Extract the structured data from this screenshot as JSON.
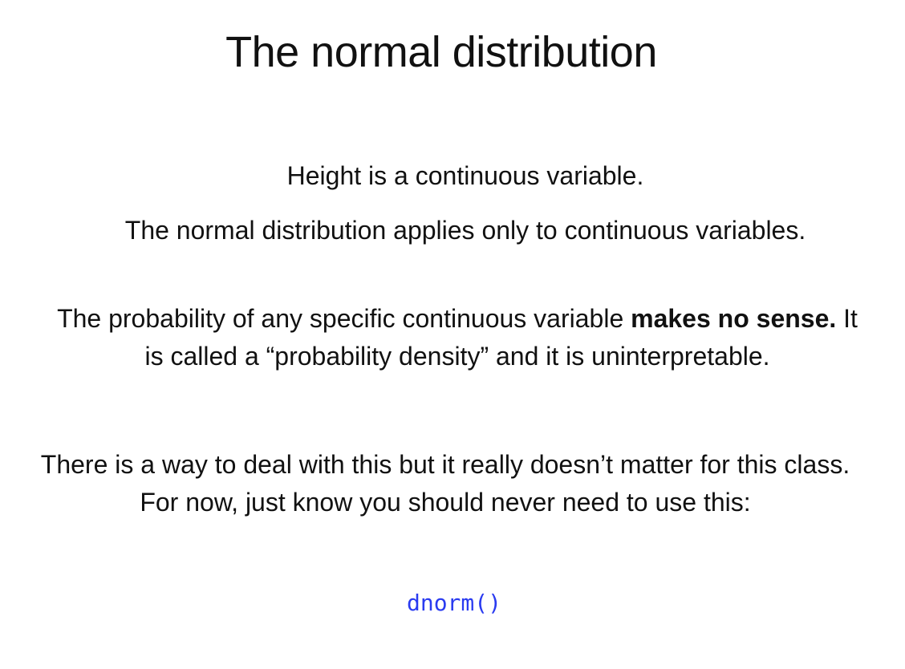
{
  "slide": {
    "title": "The normal distribution",
    "line1": "Height is a continuous variable.",
    "line2": "The normal distribution applies only to continuous variables.",
    "para3": {
      "before": "The probability of any specific continuous variable ",
      "bold": "makes no sense.",
      "after": " It is called a “probability density” and it is uninterpretable."
    },
    "para4": "There is a way to deal with this but it really doesn’t matter for this class. For now, just know you should never need to use this:",
    "code": "dnorm()",
    "code_color": "#2a3bf0"
  }
}
